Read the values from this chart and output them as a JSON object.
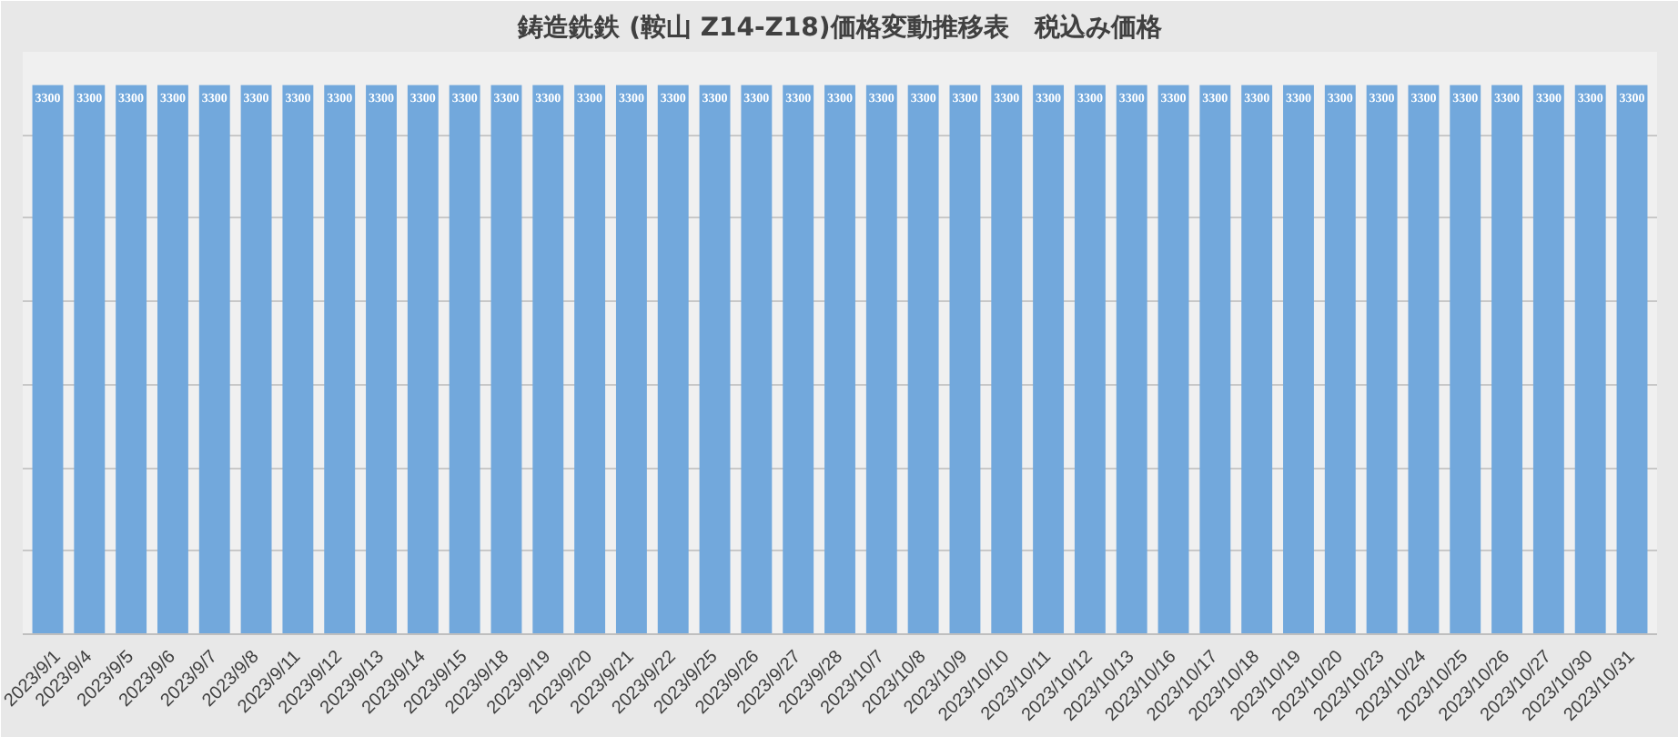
{
  "chart_data": {
    "type": "bar",
    "title": "鋳造銑鉄 (鞍山 Z14-Z18)価格変動推移表　税込み価格",
    "categories": [
      "2023/9/1",
      "2023/9/4",
      "2023/9/5",
      "2023/9/6",
      "2023/9/7",
      "2023/9/8",
      "2023/9/11",
      "2023/9/12",
      "2023/9/13",
      "2023/9/14",
      "2023/9/15",
      "2023/9/18",
      "2023/9/19",
      "2023/9/20",
      "2023/9/21",
      "2023/9/22",
      "2023/9/25",
      "2023/9/26",
      "2023/9/27",
      "2023/9/28",
      "2023/10/7",
      "2023/10/8",
      "2023/10/9",
      "2023/10/10",
      "2023/10/11",
      "2023/10/12",
      "2023/10/13",
      "2023/10/16",
      "2023/10/17",
      "2023/10/18",
      "2023/10/19",
      "2023/10/20",
      "2023/10/23",
      "2023/10/24",
      "2023/10/25",
      "2023/10/26",
      "2023/10/27",
      "2023/10/30",
      "2023/10/31"
    ],
    "values": [
      3300,
      3300,
      3300,
      3300,
      3300,
      3300,
      3300,
      3300,
      3300,
      3300,
      3300,
      3300,
      3300,
      3300,
      3300,
      3300,
      3300,
      3300,
      3300,
      3300,
      3300,
      3300,
      3300,
      3300,
      3300,
      3300,
      3300,
      3300,
      3300,
      3300,
      3300,
      3300,
      3300,
      3300,
      3300,
      3300,
      3300,
      3300,
      3300
    ],
    "color": "#72a8dc",
    "data_labels": true,
    "grid": "y",
    "tick_labels": "x",
    "ylim": [
      0,
      3500
    ],
    "yticks": [
      {
        "value": 0,
        "label": null
      },
      {
        "value": 500,
        "label": null
      },
      {
        "value": 1000,
        "label": null
      },
      {
        "value": 1500,
        "label": null
      },
      {
        "value": 2000,
        "label": null
      },
      {
        "value": 2500,
        "label": null
      },
      {
        "value": 3000,
        "label": null
      },
      {
        "value": 3500,
        "label": null
      }
    ]
  }
}
